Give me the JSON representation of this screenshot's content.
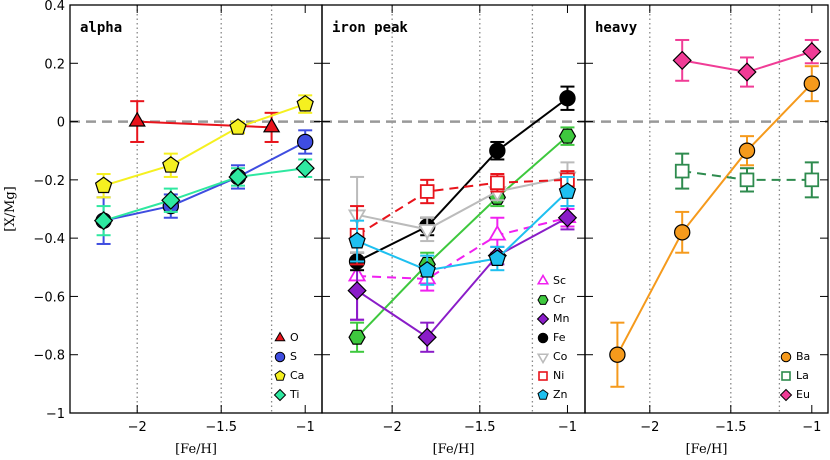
{
  "chart_data": [
    {
      "type": "errorbar-line",
      "title": "alpha",
      "xlabel": "[Fe/H]",
      "ylabel": "[X/Mg]",
      "xlim": [
        -2.4,
        -0.9
      ],
      "ylim": [
        -1,
        0.4
      ],
      "xticks": [
        {
          "value": -2,
          "label": "−2"
        },
        {
          "value": -1.5,
          "label": "−1.5"
        },
        {
          "value": -1,
          "label": "−1"
        }
      ],
      "yticks": [
        {
          "value": -1,
          "label": "−1"
        },
        {
          "value": -0.8,
          "label": "−0.8"
        },
        {
          "value": -0.6,
          "label": "−0.6"
        },
        {
          "value": -0.4,
          "label": "−0.4"
        },
        {
          "value": -0.2,
          "label": "−0.2"
        },
        0,
        0.2,
        0.4
      ],
      "vlines": [
        -2,
        -1.5,
        -1.2
      ],
      "hline": 0,
      "legend": "lower right",
      "series": [
        {
          "name": "O",
          "color": "#e8141c",
          "marker": "triangle",
          "filled": true,
          "dashed": false,
          "x": [
            -2.0,
            -1.2
          ],
          "values": [
            0.0,
            -0.02
          ],
          "errors": [
            0.07,
            0.05
          ]
        },
        {
          "name": "S",
          "color": "#3f4de0",
          "marker": "circle",
          "filled": true,
          "dashed": false,
          "x": [
            -2.2,
            -1.8,
            -1.4,
            -1.0
          ],
          "values": [
            -0.34,
            -0.29,
            -0.19,
            -0.07
          ],
          "errors": [
            0.08,
            0.04,
            0.04,
            0.04
          ]
        },
        {
          "name": "Ca",
          "color": "#f5f020",
          "marker": "pentagon",
          "filled": true,
          "dashed": false,
          "x": [
            -2.2,
            -1.8,
            -1.4,
            -1.0
          ],
          "values": [
            -0.22,
            -0.15,
            -0.02,
            0.06
          ],
          "errors": [
            0.04,
            0.04,
            0.02,
            0.03
          ]
        },
        {
          "name": "Ti",
          "color": "#2ee8a0",
          "marker": "diamond",
          "filled": true,
          "dashed": false,
          "x": [
            -2.2,
            -1.8,
            -1.4,
            -1.0
          ],
          "values": [
            -0.34,
            -0.27,
            -0.19,
            -0.16
          ],
          "errors": [
            0.05,
            0.04,
            0.03,
            0.03
          ]
        }
      ]
    },
    {
      "type": "errorbar-line",
      "title": "iron peak",
      "xlabel": "[Fe/H]",
      "xlim": [
        -2.4,
        -0.9
      ],
      "ylim": [
        -1,
        0.4
      ],
      "xticks": [
        {
          "value": -2,
          "label": "−2"
        },
        {
          "value": -1.5,
          "label": "−1.5"
        },
        {
          "value": -1,
          "label": "−1"
        }
      ],
      "vlines": [
        -2,
        -1.5,
        -1.2
      ],
      "hline": 0,
      "legend": "lower right",
      "series": [
        {
          "name": "Sc",
          "color": "#f020f0",
          "marker": "triangle",
          "filled": false,
          "dashed": true,
          "x": [
            -2.2,
            -1.8,
            -1.4,
            -1.0
          ],
          "values": [
            -0.53,
            -0.54,
            -0.39,
            -0.33
          ],
          "errors": [
            0.15,
            0.04,
            0.06,
            0.03
          ]
        },
        {
          "name": "Cr",
          "color": "#3ec83e",
          "marker": "hexagon",
          "filled": true,
          "dashed": false,
          "x": [
            -2.2,
            -1.8,
            -1.4,
            -1.0
          ],
          "values": [
            -0.74,
            -0.49,
            -0.26,
            -0.05
          ],
          "errors": [
            0.05,
            0.04,
            0.03,
            0.03
          ]
        },
        {
          "name": "Mn",
          "color": "#8a1cc8",
          "marker": "diamond",
          "filled": true,
          "dashed": false,
          "x": [
            -2.2,
            -1.8,
            -1.4,
            -1.0
          ],
          "values": [
            -0.58,
            -0.74,
            -0.46,
            -0.33
          ],
          "errors": [
            0.1,
            0.05,
            0.03,
            0.04
          ]
        },
        {
          "name": "Fe",
          "color": "#000000",
          "marker": "circle",
          "filled": true,
          "dashed": false,
          "x": [
            -2.2,
            -1.8,
            -1.4,
            -1.0
          ],
          "values": [
            -0.48,
            -0.36,
            -0.1,
            0.08
          ],
          "errors": [
            0.03,
            0.03,
            0.03,
            0.04
          ]
        },
        {
          "name": "Co",
          "color": "#bbbbbb",
          "marker": "triangle-down",
          "filled": false,
          "dashed": false,
          "x": [
            -2.2,
            -1.8,
            -1.4,
            -1.0
          ],
          "values": [
            -0.32,
            -0.37,
            -0.24,
            -0.19
          ],
          "errors": [
            0.13,
            0.04,
            0.03,
            0.05
          ]
        },
        {
          "name": "Ni",
          "color": "#e8141c",
          "marker": "square",
          "filled": false,
          "dashed": true,
          "x": [
            -2.2,
            -1.8,
            -1.4,
            -1.0
          ],
          "values": [
            -0.39,
            -0.24,
            -0.21,
            -0.2
          ],
          "errors": [
            0.1,
            0.04,
            0.03,
            0.03
          ]
        },
        {
          "name": "Zn",
          "color": "#1ec0f0",
          "marker": "pentagon",
          "filled": true,
          "dashed": false,
          "x": [
            -2.2,
            -1.8,
            -1.4,
            -1.0
          ],
          "values": [
            -0.41,
            -0.51,
            -0.47,
            -0.24
          ],
          "errors": [
            0.07,
            0.05,
            0.04,
            0.05
          ]
        }
      ]
    },
    {
      "type": "errorbar-line",
      "title": "heavy",
      "xlabel": "[Fe/H]",
      "xlim": [
        -2.4,
        -0.9
      ],
      "ylim": [
        -1,
        0.4
      ],
      "xticks": [
        {
          "value": -2,
          "label": "−2"
        },
        {
          "value": -1.5,
          "label": "−1.5"
        },
        {
          "value": -1,
          "label": "−1"
        }
      ],
      "vlines": [
        -2,
        -1.5,
        -1.2
      ],
      "hline": 0,
      "legend": "lower right",
      "series": [
        {
          "name": "Ba",
          "color": "#f59a1c",
          "marker": "circle",
          "filled": true,
          "dashed": false,
          "x": [
            -2.2,
            -1.8,
            -1.4,
            -1.0
          ],
          "values": [
            -0.8,
            -0.38,
            -0.1,
            0.13
          ],
          "errors": [
            0.11,
            0.07,
            0.05,
            0.06
          ]
        },
        {
          "name": "La",
          "color": "#2e8b4e",
          "marker": "square",
          "filled": false,
          "dashed": true,
          "x": [
            -1.8,
            -1.4,
            -1.0
          ],
          "values": [
            -0.17,
            -0.2,
            -0.2
          ],
          "errors": [
            0.06,
            0.04,
            0.06
          ]
        },
        {
          "name": "Eu",
          "color": "#f03c96",
          "marker": "diamond",
          "filled": true,
          "dashed": false,
          "x": [
            -1.8,
            -1.4,
            -1.0
          ],
          "values": [
            0.21,
            0.17,
            0.24
          ],
          "errors": [
            0.07,
            0.05,
            0.04
          ]
        }
      ]
    }
  ]
}
